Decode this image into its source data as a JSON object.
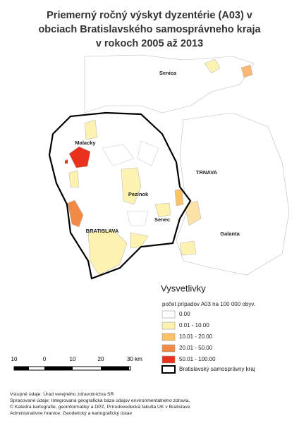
{
  "title": [
    "Priemerný ročný výskyt dyzentérie (A03) v",
    "obciach Bratislavského samosprávneho kraja",
    "v rokoch 2005 až 2013"
  ],
  "places": [
    "Senica",
    "Malacky",
    "TRNAVA",
    "Pezinok",
    "Senec",
    "BRATISLAVA",
    "Galanta"
  ],
  "legend": {
    "title": "Vysvetlivky",
    "subtitle": "počet prípadov A03 na 100 000 obyv.",
    "items": [
      {
        "label": "0.00",
        "color": "#ffffff"
      },
      {
        "label": "0.01 - 10.00",
        "color": "#fdf2b0"
      },
      {
        "label": "10.01 - 20.00",
        "color": "#fbc267"
      },
      {
        "label": "20.01 - 50.00",
        "color": "#f08a44"
      },
      {
        "label": "50.01 - 100.00",
        "color": "#e8321e"
      },
      {
        "label": "Bratislavský samosprávny kraj",
        "color": "outline"
      }
    ]
  },
  "scale": [
    "10",
    "0",
    "10",
    "20",
    "30 km"
  ],
  "sources": [
    "Vstupné údaje: Úrad verejného zdravotníctva SR",
    "Spracované údaje: Integrovaná geografická báza údajov environmentálneho zdravia,",
    "© Katedra kartografie, geoinformatiky a DPZ, Prírodovedecká fakulta UK v Bratislave",
    "Administratívne hranice: Geodetický a kartografický ústav"
  ]
}
